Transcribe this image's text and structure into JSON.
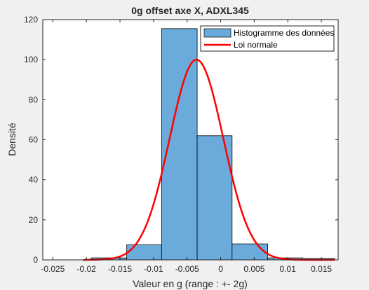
{
  "chart_data": {
    "type": "bar",
    "title": "0g offset axe X, ADXL345",
    "xlabel": "Valeur en g (range : +- 2g)",
    "ylabel": "Densité",
    "xlim": [
      -0.0265,
      0.0175
    ],
    "ylim": [
      0,
      120
    ],
    "xticks": [
      -0.025,
      -0.02,
      -0.015,
      -0.01,
      -0.005,
      0,
      0.005,
      0.01,
      0.015
    ],
    "xtick_labels": [
      "-0.025",
      "-0.02",
      "-0.015",
      "-0.01",
      "-0.005",
      "0",
      "0.005",
      "0.01",
      "0.015"
    ],
    "yticks": [
      0,
      20,
      40,
      60,
      80,
      100,
      120
    ],
    "ytick_labels": [
      "0",
      "20",
      "40",
      "60",
      "80",
      "100",
      "120"
    ],
    "grid": false,
    "legend_position": "top-right",
    "series": [
      {
        "name": "Histogramme des données",
        "type": "histogram",
        "color": "#6aabdb",
        "bins": [
          {
            "x0": -0.0193,
            "x1": -0.014,
            "value": 1
          },
          {
            "x0": -0.014,
            "x1": -0.0088,
            "value": 7.5
          },
          {
            "x0": -0.0088,
            "x1": -0.0035,
            "value": 115.5
          },
          {
            "x0": -0.0035,
            "x1": 0.0017,
            "value": 62
          },
          {
            "x0": 0.0017,
            "x1": 0.007,
            "value": 8
          },
          {
            "x0": 0.007,
            "x1": 0.0122,
            "value": 1
          },
          {
            "x0": 0.0122,
            "x1": 0.017,
            "value": 0.7
          }
        ]
      },
      {
        "name": "Loi normale",
        "type": "line",
        "color": "#ff0000",
        "curve": "normal",
        "mean": -0.0036,
        "sigma": 0.004,
        "peak": 100,
        "x_range": [
          -0.0205,
          0.017
        ]
      }
    ]
  }
}
